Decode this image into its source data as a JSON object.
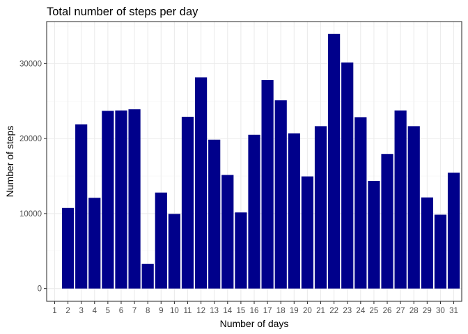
{
  "chart_data": {
    "type": "bar",
    "title": "Total number of steps per day",
    "xlabel": "Number of days",
    "ylabel": "Number of steps",
    "categories": [
      "1",
      "2",
      "3",
      "4",
      "5",
      "6",
      "7",
      "8",
      "9",
      "10",
      "11",
      "12",
      "13",
      "14",
      "15",
      "16",
      "17",
      "18",
      "19",
      "20",
      "21",
      "22",
      "23",
      "24",
      "25",
      "26",
      "27",
      "28",
      "29",
      "30",
      "31"
    ],
    "values": [
      null,
      10750,
      21900,
      12100,
      23700,
      23750,
      23900,
      3300,
      12800,
      9950,
      22900,
      28150,
      19850,
      15150,
      10150,
      20500,
      27800,
      25100,
      20700,
      14950,
      21650,
      33950,
      30150,
      22850,
      14350,
      17950,
      23750,
      21650,
      12150,
      9850,
      15450
    ],
    "yticks": [
      0,
      10000,
      20000,
      30000
    ],
    "ylim": [
      -1700,
      35600
    ],
    "grid": true,
    "colors": {
      "bar": "#00008b",
      "background": "#ffffff"
    }
  }
}
